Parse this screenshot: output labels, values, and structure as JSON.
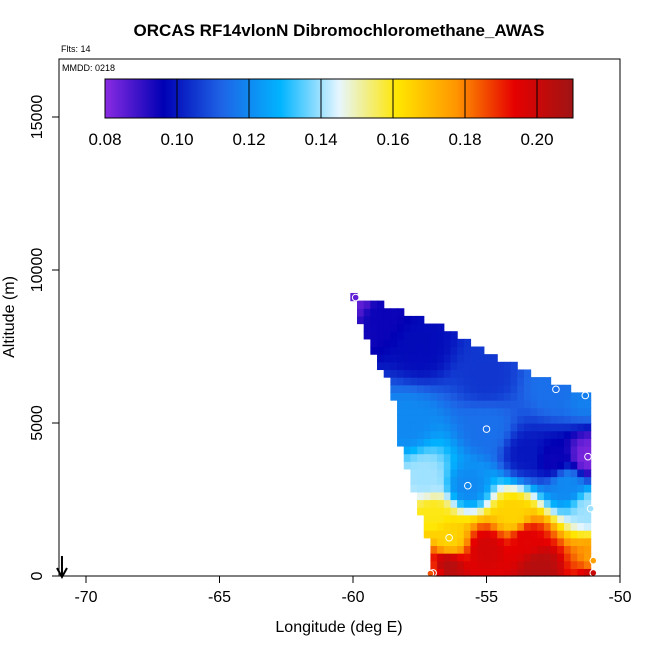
{
  "chart_data": {
    "type": "heatmap",
    "title": "ORCAS RF14vlonN Dibromochloromethane_AWAS",
    "note_flights": "Flts: 14",
    "note_date": "MMDD: 0218",
    "xlabel": "Longitude (deg E)",
    "ylabel": "Altitude (m)",
    "xlim": [
      -71,
      -50
    ],
    "ylim": [
      0,
      16500
    ],
    "x_ticks": [
      -70,
      -65,
      -60,
      -55,
      -50
    ],
    "x_tick_labels": [
      "-70",
      "-65",
      "-60",
      "-55",
      "-50"
    ],
    "y_ticks": [
      0,
      5000,
      10000,
      15000
    ],
    "y_tick_labels": [
      "0",
      "5000",
      "10000",
      "15000"
    ],
    "colorbar": {
      "min": 0.08,
      "max": 0.21,
      "ticks": [
        0.08,
        0.1,
        0.12,
        0.14,
        0.16,
        0.18,
        0.2
      ],
      "tick_labels": [
        "0.08",
        "0.10",
        "0.12",
        "0.14",
        "0.16",
        "0.18",
        "0.20"
      ],
      "colors": [
        "#8a2be2",
        "#0000b4",
        "#1e64e6",
        "#00b4ff",
        "#e6f6ff",
        "#ffe600",
        "#ff9600",
        "#e60000",
        "#a01414"
      ]
    },
    "field": {
      "description_free": true,
      "lon_min": -60.1,
      "lon_max": -51.0,
      "cell_lon": 0.25,
      "cell_alt": 250,
      "domain_left_edge": [
        [
          -60.1,
          9200
        ],
        [
          -59.5,
          7800
        ],
        [
          -58.5,
          6000
        ],
        [
          -58.3,
          4500
        ],
        [
          -57.6,
          2500
        ],
        [
          -57.1,
          1000
        ],
        [
          -57.2,
          0
        ]
      ],
      "domain_top_edge": [
        [
          -60.1,
          9200
        ],
        [
          -59.3,
          9000
        ],
        [
          -57.0,
          8300
        ],
        [
          -55.0,
          7300
        ],
        [
          -52.5,
          6300
        ],
        [
          -51.0,
          5800
        ],
        [
          -51.0,
          0
        ]
      ]
    },
    "samples": [
      {
        "lon": -59.9,
        "alt": 9100,
        "value": 0.085
      },
      {
        "lon": -52.4,
        "alt": 6100,
        "value": 0.115
      },
      {
        "lon": -51.3,
        "alt": 5900,
        "value": 0.118
      },
      {
        "lon": -55.0,
        "alt": 4800,
        "value": 0.115
      },
      {
        "lon": -51.2,
        "alt": 3900,
        "value": 0.082
      },
      {
        "lon": -55.7,
        "alt": 2950,
        "value": 0.12
      },
      {
        "lon": -51.1,
        "alt": 2200,
        "value": 0.14
      },
      {
        "lon": -56.4,
        "alt": 1250,
        "value": 0.165
      },
      {
        "lon": -51.0,
        "alt": 500,
        "value": 0.175
      },
      {
        "lon": -57.0,
        "alt": 100,
        "value": 0.19
      },
      {
        "lon": -57.1,
        "alt": 80,
        "value": 0.185
      },
      {
        "lon": -51.0,
        "alt": 100,
        "value": 0.2
      }
    ],
    "arrow_marker": {
      "lon": -70.9,
      "alt": 0,
      "direction": "down"
    }
  }
}
